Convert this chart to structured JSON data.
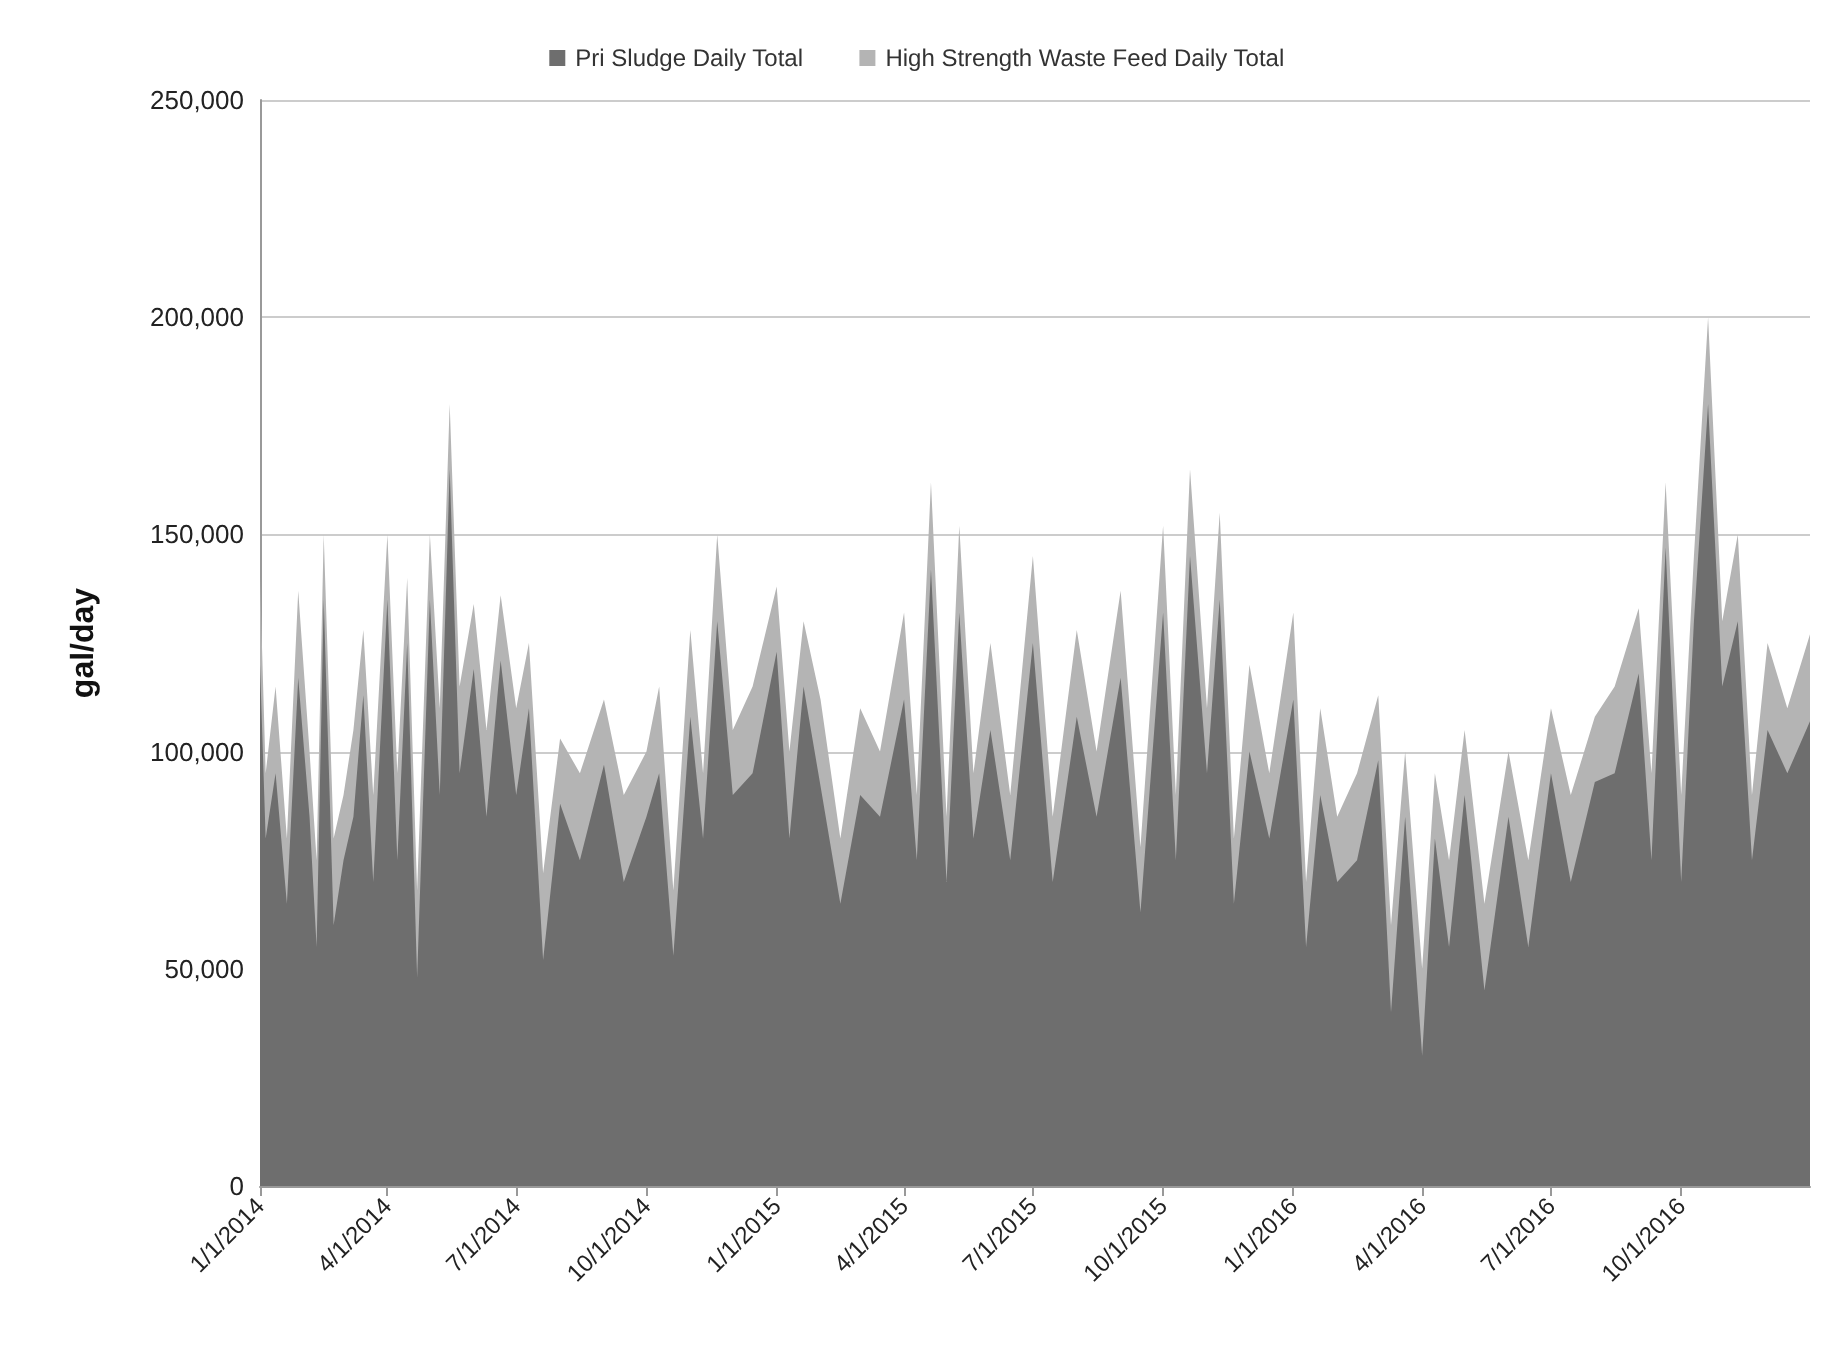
{
  "chart_data": {
    "type": "area",
    "stacked": true,
    "ylabel": "gal/day",
    "legend": "top",
    "grid": "y",
    "x": [
      "2014-01-01",
      "2014-01-05",
      "2014-01-12",
      "2014-01-20",
      "2014-01-28",
      "2014-02-05",
      "2014-02-10",
      "2014-02-15",
      "2014-02-22",
      "2014-03-01",
      "2014-03-08",
      "2014-03-15",
      "2014-03-22",
      "2014-04-01",
      "2014-04-08",
      "2014-04-15",
      "2014-04-22",
      "2014-05-01",
      "2014-05-08",
      "2014-05-15",
      "2014-05-22",
      "2014-06-01",
      "2014-06-10",
      "2014-06-20",
      "2014-07-01",
      "2014-07-10",
      "2014-07-20",
      "2014-08-01",
      "2014-08-15",
      "2014-09-01",
      "2014-09-15",
      "2014-10-01",
      "2014-10-10",
      "2014-10-20",
      "2014-11-01",
      "2014-11-10",
      "2014-11-20",
      "2014-12-01",
      "2014-12-15",
      "2015-01-01",
      "2015-01-10",
      "2015-01-20",
      "2015-02-01",
      "2015-02-15",
      "2015-03-01",
      "2015-03-15",
      "2015-04-01",
      "2015-04-10",
      "2015-04-20",
      "2015-05-01",
      "2015-05-10",
      "2015-05-20",
      "2015-06-01",
      "2015-06-15",
      "2015-07-01",
      "2015-07-15",
      "2015-08-01",
      "2015-08-15",
      "2015-09-01",
      "2015-09-15",
      "2015-10-01",
      "2015-10-10",
      "2015-10-20",
      "2015-11-01",
      "2015-11-10",
      "2015-11-20",
      "2015-12-01",
      "2015-12-15",
      "2016-01-01",
      "2016-01-10",
      "2016-01-20",
      "2016-02-01",
      "2016-02-15",
      "2016-03-01",
      "2016-03-10",
      "2016-03-20",
      "2016-04-01",
      "2016-04-10",
      "2016-04-20",
      "2016-05-01",
      "2016-05-15",
      "2016-06-01",
      "2016-06-15",
      "2016-07-01",
      "2016-07-15",
      "2016-08-01",
      "2016-08-15",
      "2016-09-01",
      "2016-09-10",
      "2016-09-20",
      "2016-10-01",
      "2016-10-10",
      "2016-10-20",
      "2016-10-30",
      "2016-11-10",
      "2016-11-20",
      "2016-12-01",
      "2016-12-15",
      "2016-12-31"
    ],
    "series": [
      {
        "name": "Pri Sludge Daily Total",
        "color": "#6e6e6e",
        "values": [
          120000,
          80000,
          95000,
          65000,
          117000,
          85000,
          55000,
          135000,
          60000,
          75000,
          85000,
          113000,
          70000,
          135000,
          75000,
          125000,
          48000,
          135000,
          90000,
          165000,
          95000,
          119000,
          85000,
          121000,
          90000,
          110000,
          52000,
          88000,
          75000,
          97000,
          70000,
          85000,
          95000,
          53000,
          108000,
          80000,
          130000,
          90000,
          95000,
          123000,
          80000,
          115000,
          92000,
          65000,
          90000,
          85000,
          112000,
          75000,
          142000,
          70000,
          132000,
          80000,
          105000,
          75000,
          125000,
          70000,
          108000,
          85000,
          117000,
          63000,
          132000,
          75000,
          145000,
          95000,
          135000,
          65000,
          100000,
          80000,
          112000,
          55000,
          90000,
          70000,
          75000,
          98000,
          40000,
          85000,
          30000,
          80000,
          55000,
          90000,
          45000,
          85000,
          55000,
          95000,
          70000,
          93000,
          95000,
          118000,
          75000,
          147000,
          70000,
          130000,
          180000,
          115000,
          130000,
          75000,
          105000,
          95000,
          107000
        ]
      },
      {
        "name": "High Strength Waste Feed Daily Total",
        "color": "#b4b4b4",
        "values": [
          20000,
          15000,
          20000,
          15000,
          20000,
          15000,
          20000,
          15000,
          20000,
          15000,
          20000,
          15000,
          20000,
          15000,
          20000,
          15000,
          20000,
          15000,
          20000,
          15000,
          20000,
          15000,
          20000,
          15000,
          20000,
          15000,
          20000,
          15000,
          20000,
          15000,
          20000,
          15000,
          20000,
          15000,
          20000,
          15000,
          20000,
          15000,
          20000,
          15000,
          20000,
          15000,
          20000,
          15000,
          20000,
          15000,
          20000,
          15000,
          20000,
          15000,
          20000,
          15000,
          20000,
          15000,
          20000,
          15000,
          20000,
          15000,
          20000,
          15000,
          20000,
          15000,
          20000,
          15000,
          20000,
          15000,
          20000,
          15000,
          20000,
          15000,
          20000,
          15000,
          20000,
          15000,
          20000,
          15000,
          20000,
          15000,
          20000,
          15000,
          20000,
          15000,
          20000,
          15000,
          20000,
          15000,
          20000,
          15000,
          20000,
          15000,
          20000,
          15000,
          20000,
          15000,
          20000,
          15000,
          20000,
          15000,
          20000
        ]
      }
    ],
    "xlim": [
      "2014-01-01",
      "2016-12-31"
    ],
    "xticks": [
      {
        "value": "2014-01-01",
        "label": "1/1/2014"
      },
      {
        "value": "2014-04-01",
        "label": "4/1/2014"
      },
      {
        "value": "2014-07-01",
        "label": "7/1/2014"
      },
      {
        "value": "2014-10-01",
        "label": "10/1/2014"
      },
      {
        "value": "2015-01-01",
        "label": "1/1/2015"
      },
      {
        "value": "2015-04-01",
        "label": "4/1/2015"
      },
      {
        "value": "2015-07-01",
        "label": "7/1/2015"
      },
      {
        "value": "2015-10-01",
        "label": "10/1/2015"
      },
      {
        "value": "2016-01-01",
        "label": "1/1/2016"
      },
      {
        "value": "2016-04-01",
        "label": "4/1/2016"
      },
      {
        "value": "2016-07-01",
        "label": "7/1/2016"
      },
      {
        "value": "2016-10-01",
        "label": "10/1/2016"
      }
    ],
    "ylim": [
      0,
      250000
    ],
    "yticks": [
      0,
      {
        "value": 50000,
        "label": "50,000"
      },
      {
        "value": 100000,
        "label": "100,000"
      },
      {
        "value": 150000,
        "label": "150,000"
      },
      {
        "value": 200000,
        "label": "200,000"
      },
      {
        "value": 250000,
        "label": "250,000"
      }
    ]
  }
}
